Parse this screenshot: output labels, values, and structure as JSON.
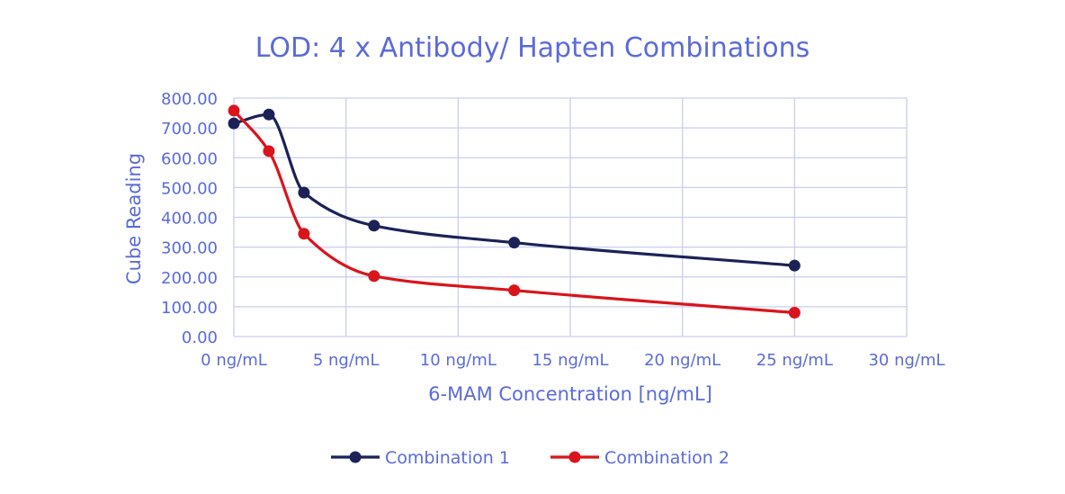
{
  "chart_data": {
    "type": "line",
    "title": "LOD: 4 x Antibody/ Hapten Combinations",
    "xlabel": "6-MAM Concentration [ng/mL]",
    "ylabel": "Cube Reading",
    "xlim": [
      0,
      30
    ],
    "ylim": [
      0,
      800
    ],
    "x_ticks": [
      0,
      5,
      10,
      15,
      20,
      25,
      30
    ],
    "x_tick_labels": [
      "0 ng/mL",
      "5 ng/mL",
      "10 ng/mL",
      "15 ng/mL",
      "20 ng/mL",
      "25 ng/mL",
      "30 ng/mL"
    ],
    "y_ticks": [
      0,
      100,
      200,
      300,
      400,
      500,
      600,
      700,
      800
    ],
    "y_tick_labels": [
      "0.00",
      "100.00",
      "200.00",
      "300.00",
      "400.00",
      "500.00",
      "600.00",
      "700.00",
      "800.00"
    ],
    "grid": true,
    "legend_position": "bottom",
    "text_color": "#5b6bd6",
    "grid_color": "#c9cdf2",
    "series": [
      {
        "name": "Combination 1",
        "color": "#1c2257",
        "x": [
          0,
          1.56,
          3.125,
          6.25,
          12.5,
          25
        ],
        "y": [
          715,
          745,
          483,
          372,
          315,
          238
        ]
      },
      {
        "name": "Combination 2",
        "color": "#d9141b",
        "x": [
          0,
          1.56,
          3.125,
          6.25,
          12.5,
          25
        ],
        "y": [
          758,
          622,
          345,
          203,
          155,
          80
        ]
      }
    ]
  }
}
